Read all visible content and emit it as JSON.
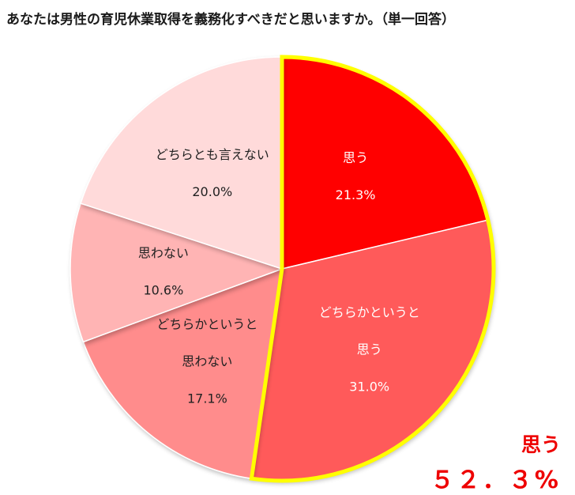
{
  "chart_data": {
    "type": "pie",
    "title": "あなたは男性の育児休業取得を義務化すべきだと思いますか。（単一回答）",
    "slices": [
      {
        "label_lines": [
          "思う"
        ],
        "value_text": "21.3%",
        "value": 21.3,
        "color": "#ff0000",
        "label_color": "#ffffff"
      },
      {
        "label_lines": [
          "どちらかというと",
          "思う"
        ],
        "value_text": "31.0%",
        "value": 31.0,
        "color": "#ff5a5a",
        "label_color": "#ffffff"
      },
      {
        "label_lines": [
          "どちらかというと",
          "思わない"
        ],
        "value_text": "17.1%",
        "value": 17.1,
        "color": "#ff8c8c",
        "label_color": "#222222"
      },
      {
        "label_lines": [
          "思わない"
        ],
        "value_text": "10.6%",
        "value": 10.6,
        "color": "#ffb4b4",
        "label_color": "#222222"
      },
      {
        "label_lines": [
          "どちらとも言えない"
        ],
        "value_text": "20.0%",
        "value": 20.0,
        "color": "#ffdada",
        "label_color": "#222222"
      }
    ],
    "highlight_color": "#ffff00",
    "total_label": "思う",
    "total_value": "５２．３%"
  }
}
